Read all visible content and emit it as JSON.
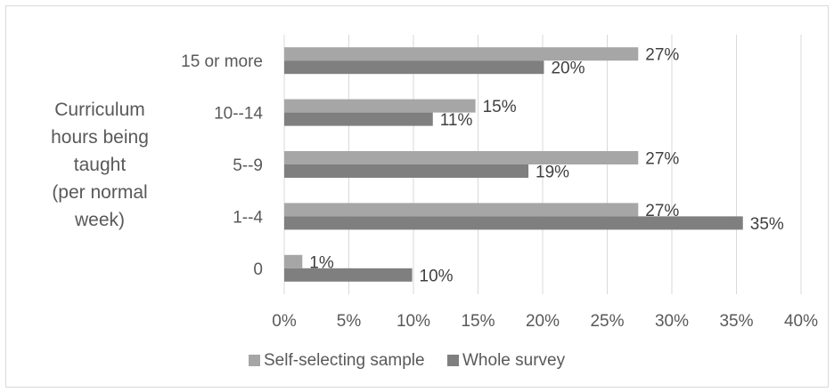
{
  "chart_data": {
    "type": "bar",
    "orientation": "horizontal",
    "categories": [
      "15 or more",
      "10--14",
      "5--9",
      "1--4",
      "0"
    ],
    "ylabel_lines": [
      "Curriculum",
      "hours being",
      "taught",
      "(per normal",
      "week)"
    ],
    "series": [
      {
        "name": "Self-selecting sample",
        "color": "#a6a6a6",
        "values": [
          27.4,
          14.8,
          27.4,
          27.4,
          1.4
        ],
        "labels": [
          "27%",
          "15%",
          "27%",
          "27%",
          "1%"
        ]
      },
      {
        "name": "Whole survey",
        "color": "#7f7f7f",
        "values": [
          20.1,
          11.5,
          18.9,
          35.5,
          9.9
        ],
        "labels": [
          "20%",
          "11%",
          "19%",
          "35%",
          "10%"
        ]
      }
    ],
    "xlim": [
      0,
      40
    ],
    "xticks": [
      "0%",
      "5%",
      "10%",
      "15%",
      "20%",
      "25%",
      "30%",
      "35%",
      "40%"
    ],
    "xtick_values": [
      0,
      5,
      10,
      15,
      20,
      25,
      30,
      35,
      40
    ],
    "grid": true,
    "gridline_color": "#d9d9d9",
    "legend_position": "bottom"
  }
}
